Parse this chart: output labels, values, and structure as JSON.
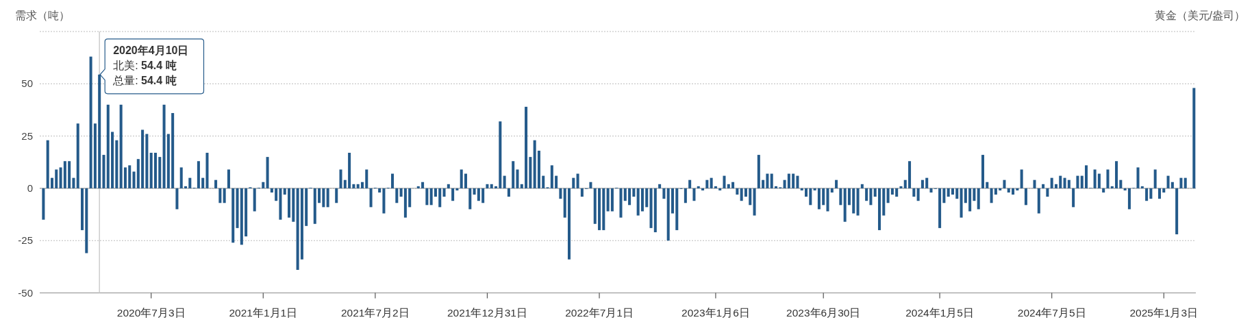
{
  "chart_data": {
    "type": "bar",
    "ylabel": "需求（吨）",
    "y2label": "黄金（美元/盎司）",
    "color": "#245a8a",
    "x": [
      "2020-01-10",
      "2020-01-17",
      "2020-01-24",
      "2020-01-31",
      "2020-02-07",
      "2020-02-14",
      "2020-02-21",
      "2020-02-28",
      "2020-03-06",
      "2020-03-13",
      "2020-03-20",
      "2020-03-27",
      "2020-04-03",
      "2020-04-10",
      "2020-04-17",
      "2020-04-24",
      "2020-05-01",
      "2020-05-08",
      "2020-05-15",
      "2020-05-22",
      "2020-05-29",
      "2020-06-05",
      "2020-06-12",
      "2020-06-19",
      "2020-06-26",
      "2020-07-03",
      "2020-07-10",
      "2020-07-17",
      "2020-07-24",
      "2020-07-31",
      "2020-08-07",
      "2020-08-14",
      "2020-08-21",
      "2020-08-28",
      "2020-09-04",
      "2020-09-11",
      "2020-09-18",
      "2020-09-25",
      "2020-10-02",
      "2020-10-09",
      "2020-10-16",
      "2020-10-23",
      "2020-10-30",
      "2020-11-06",
      "2020-11-13",
      "2020-11-20",
      "2020-11-27",
      "2020-12-04",
      "2020-12-11",
      "2020-12-18",
      "2020-12-25",
      "2021-01-01",
      "2021-01-08",
      "2021-01-15",
      "2021-01-22",
      "2021-01-29",
      "2021-02-05",
      "2021-02-12",
      "2021-02-19",
      "2021-02-26",
      "2021-03-05",
      "2021-03-12",
      "2021-03-19",
      "2021-03-26",
      "2021-04-02",
      "2021-04-09",
      "2021-04-16",
      "2021-04-23",
      "2021-04-30",
      "2021-05-07",
      "2021-05-14",
      "2021-05-21",
      "2021-05-28",
      "2021-06-04",
      "2021-06-11",
      "2021-06-18",
      "2021-06-25",
      "2021-07-02",
      "2021-07-09",
      "2021-07-16",
      "2021-07-23",
      "2021-07-30",
      "2021-08-06",
      "2021-08-13",
      "2021-08-20",
      "2021-08-27",
      "2021-09-03",
      "2021-09-10",
      "2021-09-17",
      "2021-09-24",
      "2021-10-01",
      "2021-10-08",
      "2021-10-15",
      "2021-10-22",
      "2021-10-29",
      "2021-11-05",
      "2021-11-12",
      "2021-11-19",
      "2021-11-26",
      "2021-12-03",
      "2021-12-10",
      "2021-12-17",
      "2021-12-24",
      "2021-12-31",
      "2022-01-07",
      "2022-01-14",
      "2022-01-21",
      "2022-01-28",
      "2022-02-04",
      "2022-02-11",
      "2022-02-18",
      "2022-02-25",
      "2022-03-04",
      "2022-03-11",
      "2022-03-18",
      "2022-03-25",
      "2022-04-01",
      "2022-04-08",
      "2022-04-15",
      "2022-04-22",
      "2022-04-29",
      "2022-05-06",
      "2022-05-13",
      "2022-05-20",
      "2022-05-27",
      "2022-06-03",
      "2022-06-10",
      "2022-06-17",
      "2022-06-24",
      "2022-07-01",
      "2022-07-08",
      "2022-07-15",
      "2022-07-22",
      "2022-07-29",
      "2022-08-05",
      "2022-08-12",
      "2022-08-19",
      "2022-08-26",
      "2022-09-02",
      "2022-09-09",
      "2022-09-16",
      "2022-09-23",
      "2022-09-30",
      "2022-10-07",
      "2022-10-14",
      "2022-10-21",
      "2022-10-28",
      "2022-11-04",
      "2022-11-11",
      "2022-11-18",
      "2022-11-25",
      "2022-12-02",
      "2022-12-09",
      "2022-12-16",
      "2022-12-23",
      "2022-12-30",
      "2023-01-06",
      "2023-01-13",
      "2023-01-20",
      "2023-01-27",
      "2023-02-03",
      "2023-02-10",
      "2023-02-17",
      "2023-02-24",
      "2023-03-03",
      "2023-03-10",
      "2023-03-17",
      "2023-03-24",
      "2023-03-31",
      "2023-04-07",
      "2023-04-14",
      "2023-04-21",
      "2023-04-28",
      "2023-05-05",
      "2023-05-12",
      "2023-05-19",
      "2023-05-26",
      "2023-06-02",
      "2023-06-09",
      "2023-06-16",
      "2023-06-23",
      "2023-06-30",
      "2023-07-07",
      "2023-07-14",
      "2023-07-21",
      "2023-07-28",
      "2023-08-04",
      "2023-08-11",
      "2023-08-18",
      "2023-08-25",
      "2023-09-01",
      "2023-09-08",
      "2023-09-15",
      "2023-09-22",
      "2023-09-29",
      "2023-10-06",
      "2023-10-13",
      "2023-10-20",
      "2023-10-27",
      "2023-11-03",
      "2023-11-10",
      "2023-11-17",
      "2023-11-24",
      "2023-12-01",
      "2023-12-08",
      "2023-12-15",
      "2023-12-22",
      "2023-12-29",
      "2024-01-05",
      "2024-01-12",
      "2024-01-19",
      "2024-01-26",
      "2024-02-02",
      "2024-02-09",
      "2024-02-16",
      "2024-02-23",
      "2024-03-01",
      "2024-03-08",
      "2024-03-15",
      "2024-03-22",
      "2024-03-29",
      "2024-04-05",
      "2024-04-12",
      "2024-04-19",
      "2024-04-26",
      "2024-05-03",
      "2024-05-10",
      "2024-05-17",
      "2024-05-24",
      "2024-05-31",
      "2024-06-07",
      "2024-06-14",
      "2024-06-21",
      "2024-06-28",
      "2024-07-05",
      "2024-07-12",
      "2024-07-19",
      "2024-07-26",
      "2024-08-02",
      "2024-08-09",
      "2024-08-16",
      "2024-08-23",
      "2024-08-30",
      "2024-09-06",
      "2024-09-13",
      "2024-09-20",
      "2024-09-27",
      "2024-10-04",
      "2024-10-11",
      "2024-10-18",
      "2024-10-25",
      "2024-11-01",
      "2024-11-08",
      "2024-11-15",
      "2024-11-22",
      "2024-11-29",
      "2024-12-06",
      "2024-12-13",
      "2024-12-20",
      "2024-12-27",
      "2025-01-03",
      "2025-01-10",
      "2025-01-17",
      "2025-01-24",
      "2025-01-31",
      "2025-02-07",
      "2025-02-14",
      "2025-02-21"
    ],
    "values": [
      -15,
      23,
      5,
      9,
      10,
      13,
      13,
      5,
      31,
      -20,
      -31,
      63,
      31,
      54.4,
      16,
      40,
      27,
      23,
      40,
      10,
      11,
      8,
      14,
      28,
      26,
      17,
      17,
      15,
      40,
      26,
      36,
      -10,
      10,
      1,
      5,
      0.3,
      13,
      5,
      17,
      0,
      4,
      -7,
      -7,
      9,
      -26,
      -19,
      -27,
      -23,
      0.5,
      -11,
      0.3,
      3,
      15,
      -2,
      -6,
      -15,
      -3,
      -14,
      -16,
      -39,
      -34,
      -18,
      0.3,
      -17,
      -7,
      -9,
      -9,
      0,
      -7,
      9,
      4,
      17,
      2,
      2,
      3,
      9,
      -9,
      0.3,
      -2,
      -12,
      0.3,
      7,
      -7,
      -4,
      -14,
      -9,
      0,
      1,
      3,
      -8,
      -8,
      -4,
      -9,
      -4,
      2,
      -6,
      -1,
      9,
      7,
      -10,
      -3,
      -6,
      -7,
      2,
      2,
      1,
      32,
      6,
      -4,
      13,
      9,
      2,
      39,
      15,
      23,
      18,
      6,
      0.5,
      11,
      6,
      -5,
      -14,
      -34,
      5,
      7,
      -4,
      -0.3,
      3,
      -17,
      -20,
      -20,
      -11,
      -11,
      0.3,
      -14,
      -6,
      -8,
      -4,
      -13,
      -11,
      -9,
      -19,
      -21,
      2,
      -5,
      -25,
      -12,
      -20,
      -0.3,
      -7,
      4,
      -6,
      1,
      -1,
      4,
      5,
      1,
      -1,
      6,
      2,
      3,
      -3,
      -6,
      -4,
      -8,
      -13,
      16,
      4,
      7,
      7,
      1,
      0.5,
      4,
      7,
      7,
      6,
      -1,
      -4,
      -8,
      -1,
      -10,
      -8,
      -11,
      -2,
      4,
      -8,
      -16,
      -8,
      -12,
      -13,
      2,
      -6,
      -8,
      -4,
      -20,
      -13,
      -7,
      -3,
      -4,
      1,
      4,
      13,
      -4,
      -6,
      4,
      5,
      -2,
      -0.3,
      -19,
      -7,
      -4,
      -3,
      -5,
      -14,
      -7,
      -11,
      -6,
      -10,
      16,
      3,
      -7,
      -3,
      -1,
      4,
      -2,
      -3,
      -1,
      9,
      -8,
      0,
      4,
      -12,
      2,
      -4,
      5,
      2,
      6,
      5,
      4,
      -9,
      6,
      6,
      11,
      0.2,
      9,
      7,
      -2,
      9,
      1,
      13,
      4,
      -1,
      -10,
      0.2,
      10,
      1,
      -6,
      -5,
      9,
      -5,
      -2,
      6,
      3,
      -22,
      5,
      5,
      0,
      48
    ],
    "xlim": [
      "2020-01-04",
      "2025-02-24"
    ],
    "xticks": [
      {
        "value": "2020-07-03",
        "label": "2020年7月3日"
      },
      {
        "value": "2021-01-01",
        "label": "2021年1月1日"
      },
      {
        "value": "2021-07-02",
        "label": "2021年7月2日"
      },
      {
        "value": "2021-12-31",
        "label": "2021年12月31日"
      },
      {
        "value": "2022-07-01",
        "label": "2022年7月1日"
      },
      {
        "value": "2023-01-06",
        "label": "2023年1月6日"
      },
      {
        "value": "2023-06-30",
        "label": "2023年6月30日"
      },
      {
        "value": "2024-01-05",
        "label": "2024年1月5日"
      },
      {
        "value": "2024-07-05",
        "label": "2024年7月5日"
      },
      {
        "value": "2025-01-03",
        "label": "2025年1月3日"
      }
    ],
    "ylim": [
      -50,
      75
    ],
    "yticks": [
      -50,
      -25,
      0,
      25,
      50,
      {
        "value": 75,
        "label": null
      }
    ],
    "grid": "y",
    "ref_lines": [
      {
        "axis": "x",
        "value": "2020-04-10",
        "color": "#cccccc"
      }
    ],
    "annotations": [
      {
        "text": "2020年4月10日",
        "x": "2020-04-10",
        "y": 54.4
      },
      {
        "text": "北美: 54.4 吨",
        "x": "2020-04-10",
        "y": 54.4
      },
      {
        "text": "总量: 54.4 吨",
        "x": "2020-04-10",
        "y": 54.4
      }
    ]
  }
}
